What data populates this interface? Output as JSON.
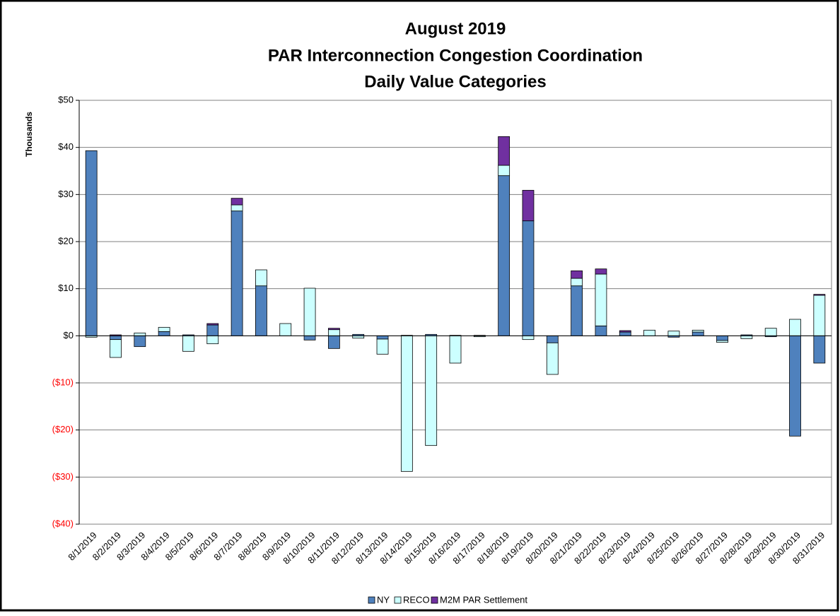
{
  "chart_data": {
    "type": "stacked_bar",
    "title": [
      "August 2019",
      "PAR Interconnection Congestion Coordination",
      "Daily Value Categories"
    ],
    "y_label": "Thousands",
    "categories": [
      "8/1/2019",
      "8/2/2019",
      "8/3/2019",
      "8/4/2019",
      "8/5/2019",
      "8/6/2019",
      "8/7/2019",
      "8/8/2019",
      "8/9/2019",
      "8/10/2019",
      "8/11/2019",
      "8/12/2019",
      "8/13/2019",
      "8/14/2019",
      "8/15/2019",
      "8/16/2019",
      "8/17/2019",
      "8/18/2019",
      "8/19/2019",
      "8/20/2019",
      "8/21/2019",
      "8/22/2019",
      "8/23/2019",
      "8/24/2019",
      "8/25/2019",
      "8/26/2019",
      "8/27/2019",
      "8/28/2019",
      "8/29/2019",
      "8/30/2019",
      "8/31/2019"
    ],
    "series": [
      {
        "name": "NY",
        "color": "#4f81bd",
        "values": [
          39.3,
          -0.8,
          -2.3,
          0.9,
          0.2,
          2.3,
          26.5,
          10.6,
          0,
          -0.9,
          -2.7,
          0.3,
          -0.7,
          0.1,
          0.3,
          0.1,
          0.1,
          34,
          24.4,
          -1.5,
          10.6,
          2.1,
          0.8,
          0,
          -0.3,
          0.8,
          -1,
          0.2,
          -0.2,
          -21.3,
          -5.8
        ]
      },
      {
        "name": "RECO",
        "color": "#ccffff",
        "values": [
          -0.3,
          -3.8,
          0.6,
          0.9,
          -3.3,
          -1.7,
          1.3,
          3.4,
          2.6,
          10.1,
          1.3,
          -0.5,
          -3.2,
          -28.8,
          -23.3,
          -5.8,
          -0.2,
          2.2,
          -0.8,
          -6.7,
          1.6,
          11,
          0,
          1.2,
          1,
          0.4,
          -0.4,
          -0.6,
          1.6,
          3.5,
          8.6
        ]
      },
      {
        "name": "M2M PAR Settlement",
        "color": "#7030a0",
        "values": [
          0,
          0.2,
          0,
          0,
          0,
          0.3,
          1.4,
          0,
          0,
          0,
          0.3,
          0,
          0,
          0,
          0,
          0,
          0,
          6.1,
          6.5,
          0,
          1.6,
          1.1,
          0.3,
          0,
          0,
          0,
          0,
          0,
          0,
          0,
          0.2
        ]
      }
    ],
    "ylim": [
      -40,
      50
    ],
    "yticks": [
      {
        "value": -40,
        "label": "($40)"
      },
      {
        "value": -30,
        "label": "($30)"
      },
      {
        "value": -20,
        "label": "($20)"
      },
      {
        "value": -10,
        "label": "($10)"
      },
      {
        "value": 0,
        "label": "$0"
      },
      {
        "value": 10,
        "label": "$10"
      },
      {
        "value": 20,
        "label": "$20"
      },
      {
        "value": 30,
        "label": "$30"
      },
      {
        "value": 40,
        "label": "$40"
      },
      {
        "value": 50,
        "label": "$50"
      }
    ],
    "grid": true,
    "legend": "bottom",
    "negative_label_color": "#ff0000"
  }
}
